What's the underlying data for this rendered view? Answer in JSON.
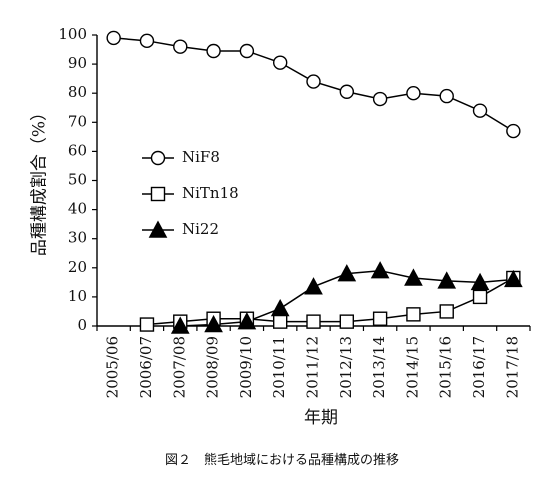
{
  "chart_data": {
    "type": "line",
    "categories": [
      "2005/06",
      "2006/07",
      "2007/08",
      "2008/09",
      "2009/10",
      "2010/11",
      "2011/12",
      "2012/13",
      "2013/14",
      "2014/15",
      "2015/16",
      "2016/17",
      "2017/18"
    ],
    "ylim": [
      0,
      100
    ],
    "yticks": [
      "0",
      "10",
      "20",
      "30",
      "40",
      "50",
      "60",
      "70",
      "80",
      "90",
      "100"
    ],
    "ylabel": "品種構成割合（%）",
    "xlabel": "年期",
    "caption": "図２　熊毛地域における品種構成の推移",
    "legend_position": "left-center",
    "grid": false,
    "series": [
      {
        "name": "NiF8",
        "marker": "circle-open",
        "values": [
          99,
          98,
          96,
          94.5,
          94.5,
          90.5,
          84,
          80.5,
          78,
          80,
          79,
          74,
          67
        ]
      },
      {
        "name": "NiTn18",
        "marker": "square-open",
        "values": [
          null,
          0.5,
          1.5,
          2.5,
          2.5,
          1.5,
          1.5,
          1.5,
          2.5,
          4,
          5,
          10,
          16.5
        ]
      },
      {
        "name": "Ni22",
        "marker": "triangle-filled",
        "values": [
          null,
          null,
          0,
          0.5,
          1.5,
          6,
          13.5,
          18,
          19,
          16.5,
          15.5,
          15,
          16
        ]
      }
    ]
  }
}
